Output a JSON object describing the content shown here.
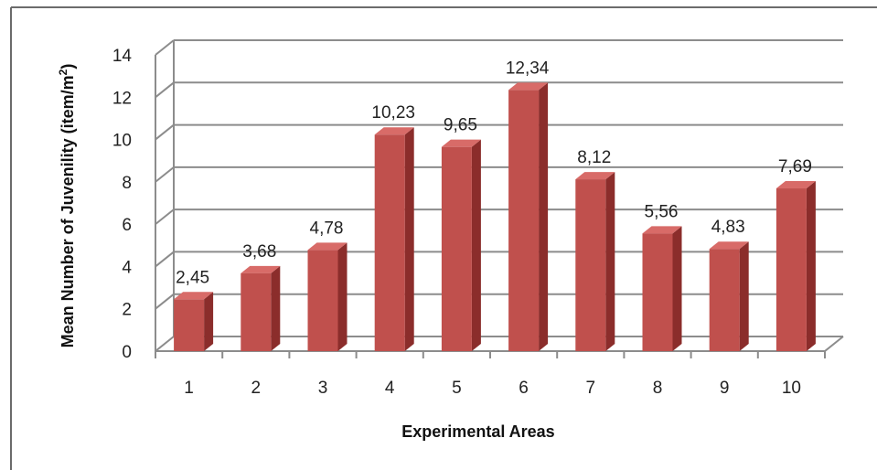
{
  "chart_data": {
    "type": "bar",
    "categories": [
      "1",
      "2",
      "3",
      "4",
      "5",
      "6",
      "7",
      "8",
      "9",
      "10"
    ],
    "values": [
      2.45,
      3.68,
      4.78,
      10.23,
      9.65,
      12.34,
      8.12,
      5.56,
      4.83,
      7.69
    ],
    "value_labels": [
      "2,45",
      "3,68",
      "4,78",
      "10,23",
      "9,65",
      "12,34",
      "8,12",
      "5,56",
      "4,83",
      "7,69"
    ],
    "xlabel": "Experimental Areas",
    "ylabel_prefix": "Mean Number of Juvenility (item/m",
    "ylabel_superscript": "2",
    "ylabel_suffix": ")",
    "ylim": [
      0,
      14
    ],
    "yticks": [
      0,
      2,
      4,
      6,
      8,
      10,
      12,
      14
    ],
    "ytick_labels": [
      "0",
      "2",
      "4",
      "6",
      "8",
      "10",
      "12",
      "14"
    ],
    "grid": true,
    "legend": "none",
    "style": "3d-column",
    "colors": {
      "bar_front": "#c0504d",
      "bar_side": "#8b2d2b",
      "bar_top": "#d86b68",
      "grid": "#8c8c8c",
      "text": "#222222"
    }
  }
}
